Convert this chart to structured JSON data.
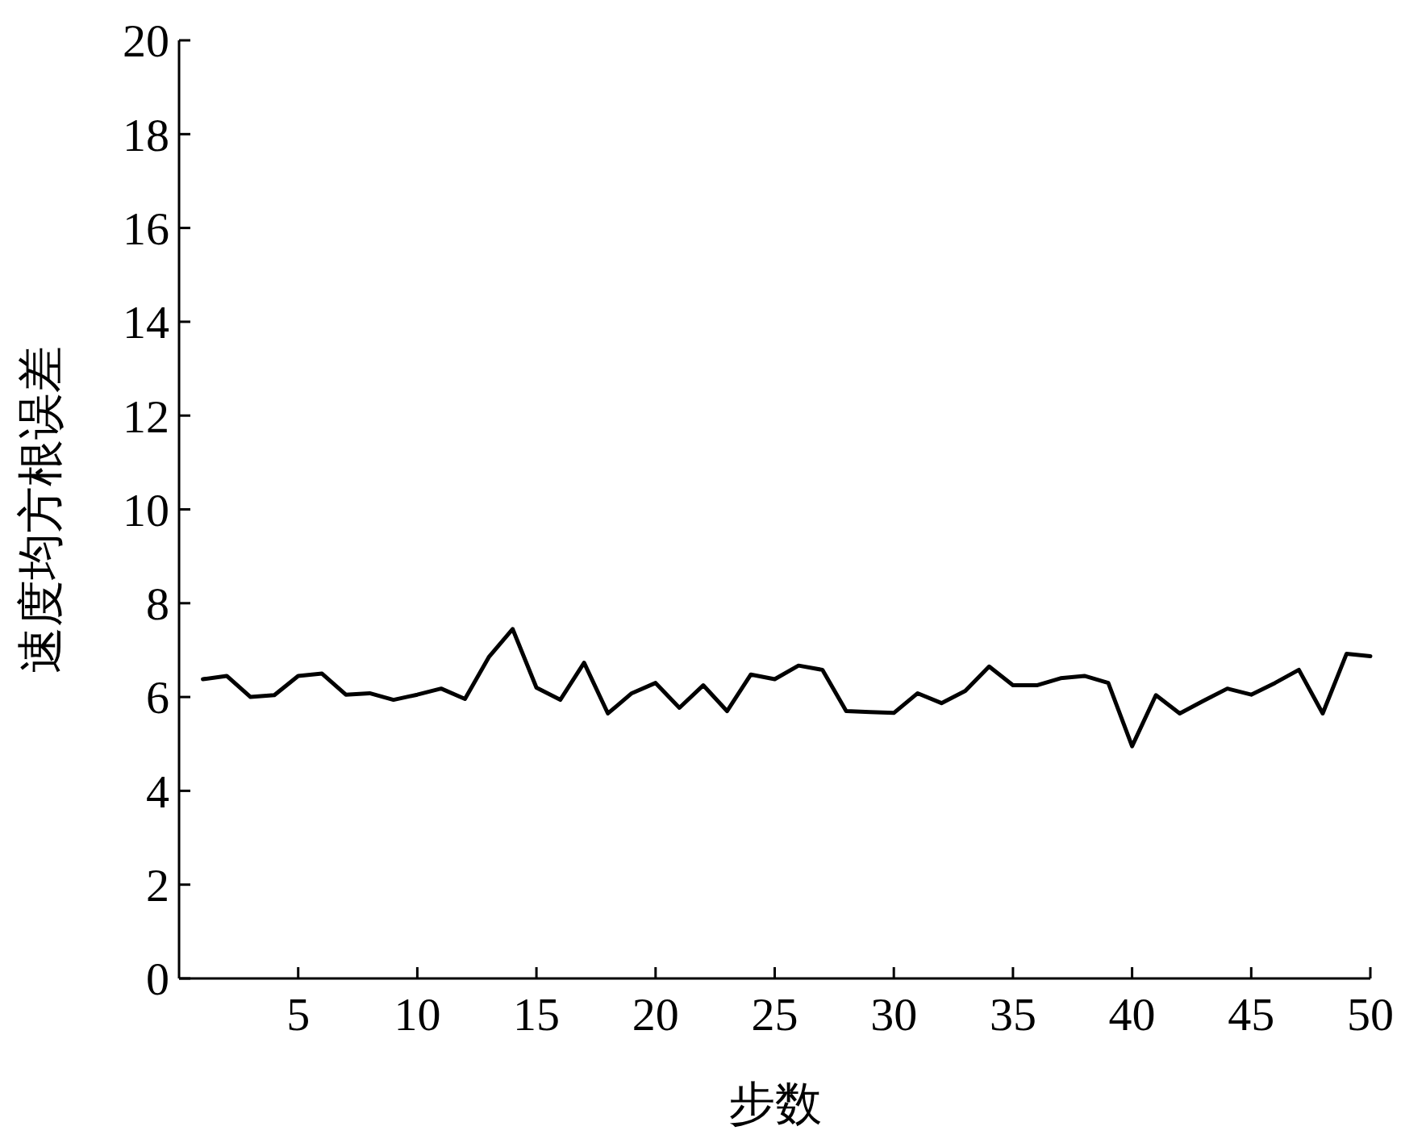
{
  "chart_data": {
    "type": "line",
    "xlabel": "步数",
    "ylabel": "速度均方根误差",
    "x": [
      1,
      2,
      3,
      4,
      5,
      6,
      7,
      8,
      9,
      10,
      11,
      12,
      13,
      14,
      15,
      16,
      17,
      18,
      19,
      20,
      21,
      22,
      23,
      24,
      25,
      26,
      27,
      28,
      29,
      30,
      31,
      32,
      33,
      34,
      35,
      36,
      37,
      38,
      39,
      40,
      41,
      42,
      43,
      44,
      45,
      46,
      47,
      48,
      49,
      50
    ],
    "series": [
      {
        "color": "#000000",
        "values": [
          6.38,
          6.45,
          6.0,
          6.04,
          6.45,
          6.5,
          6.05,
          6.08,
          5.94,
          6.05,
          6.18,
          5.96,
          6.85,
          7.45,
          6.2,
          5.94,
          6.73,
          5.65,
          6.08,
          6.3,
          5.77,
          6.25,
          5.7,
          6.48,
          6.38,
          6.67,
          6.58,
          5.7,
          5.68,
          5.66,
          6.08,
          5.87,
          6.13,
          6.65,
          6.25,
          6.25,
          6.4,
          6.45,
          6.3,
          4.95,
          6.04,
          5.65,
          5.92,
          6.18,
          6.05,
          6.3,
          6.58,
          5.65,
          6.92,
          6.87
        ]
      }
    ],
    "xlim": [
      0,
      50
    ],
    "xticks": [
      5,
      10,
      15,
      20,
      25,
      30,
      35,
      40,
      45,
      50
    ],
    "ylim": [
      0,
      20
    ],
    "yticks": [
      0,
      2,
      4,
      6,
      8,
      10,
      12,
      14,
      16,
      18,
      20
    ],
    "marker": "none",
    "line_style": "solid"
  }
}
